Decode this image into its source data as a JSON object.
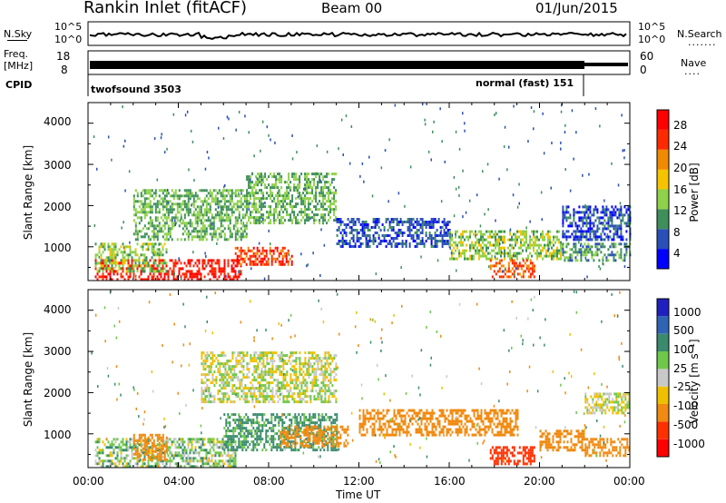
{
  "header": {
    "station": "Rankin Inlet (fitACF)",
    "beam": "Beam 00",
    "date": "01/Jun/2015"
  },
  "strips": {
    "nsky_label": "N.Sky",
    "nsky_ticks": [
      "10^5",
      "10^0"
    ],
    "nsearch_label": "N.Search",
    "nsearch_ticks": [
      "10^5",
      "10^0"
    ],
    "freq_label": "Freq.",
    "freq_unit": "[MHz]",
    "freq_ticks": [
      "18",
      "8"
    ],
    "nave_label": "Nave",
    "nave_ticks": [
      "60",
      "0"
    ],
    "cpid_label": "CPID",
    "cpid_modes": [
      {
        "name": "twofsound 3503",
        "start_hour": 0.5,
        "end_hour": 22.0
      },
      {
        "name": "normal (fast) 151",
        "start_hour": 22.0,
        "end_hour": 24.0
      }
    ]
  },
  "colors": {
    "power_scale": [
      "#0000ff",
      "#2a4fb8",
      "#3e8f5c",
      "#8fd14a",
      "#f5c400",
      "#f08a00",
      "#ff2a00",
      "#ff0000"
    ],
    "velocity_scale": [
      "#2020c0",
      "#2f64b4",
      "#3a8a6e",
      "#6fc84a",
      "#c8c8c8",
      "#f0c000",
      "#f08a10",
      "#ff3000",
      "#ff0000"
    ]
  },
  "power_panel": {
    "ylabel": "Slant Range [km]",
    "yticks": [
      "4000",
      "3000",
      "2000",
      "1000"
    ],
    "colorbar_label": "Power [dB]",
    "colorbar_ticks": [
      "28",
      "24",
      "20",
      "16",
      "12",
      "8",
      "4"
    ]
  },
  "velocity_panel": {
    "ylabel": "Slant Range [km]",
    "yticks": [
      "4000",
      "3000",
      "2000",
      "1000"
    ],
    "colorbar_label": "Velocity [m s⁻¹]",
    "colorbar_ticks": [
      "1000",
      "500",
      "100",
      "25",
      "-25",
      "-100",
      "-500",
      "-1000"
    ]
  },
  "xaxis": {
    "label": "Time UT",
    "ticks": [
      "00:00",
      "04:00",
      "08:00",
      "12:00",
      "16:00",
      "20:00",
      "00:00"
    ]
  },
  "chart_data": [
    {
      "type": "heatmap",
      "title": "Rankin Inlet (fitACF) Beam 00 01/Jun/2015",
      "xlabel": "Time UT",
      "ylabel": "Slant Range [km]",
      "x_range_hours": [
        0,
        24
      ],
      "ylim": [
        180,
        4500
      ],
      "colorbar": "Power [dB]",
      "colorbar_range": [
        0,
        32
      ],
      "grid": false,
      "regions": [
        {
          "t": [
            0.3,
            6.8
          ],
          "r": [
            180,
            700
          ],
          "value": 28
        },
        {
          "t": [
            0.3,
            3.5
          ],
          "r": [
            400,
            1100
          ],
          "value": 14
        },
        {
          "t": [
            2.0,
            7.0
          ],
          "r": [
            1200,
            2400
          ],
          "value": 12
        },
        {
          "t": [
            6.5,
            9.0
          ],
          "r": [
            600,
            1000
          ],
          "value": 26
        },
        {
          "t": [
            7.0,
            11.0
          ],
          "r": [
            1600,
            2800
          ],
          "value": 12
        },
        {
          "t": [
            11.0,
            16.0
          ],
          "r": [
            1000,
            1700
          ],
          "value": 6
        },
        {
          "t": [
            16.0,
            21.0
          ],
          "r": [
            700,
            1400
          ],
          "value": 14
        },
        {
          "t": [
            17.8,
            19.8
          ],
          "r": [
            300,
            700
          ],
          "value": 24
        },
        {
          "t": [
            21.0,
            24.0
          ],
          "r": [
            1200,
            2000
          ],
          "value": 6
        },
        {
          "t": [
            21.0,
            24.0
          ],
          "r": [
            700,
            1100
          ],
          "value": 10
        }
      ]
    },
    {
      "type": "heatmap",
      "title": "Rankin Inlet (fitACF) Beam 00 01/Jun/2015",
      "xlabel": "Time UT",
      "ylabel": "Slant Range [km]",
      "x_range_hours": [
        0,
        24
      ],
      "ylim": [
        180,
        4500
      ],
      "colorbar": "Velocity [m s⁻¹]",
      "colorbar_values": [
        1000,
        500,
        100,
        25,
        -25,
        -100,
        -500,
        -1000
      ],
      "grid": false,
      "regions": [
        {
          "t": [
            0.3,
            6.5
          ],
          "r": [
            180,
            900
          ],
          "value": 50
        },
        {
          "t": [
            2.0,
            3.5
          ],
          "r": [
            400,
            1000
          ],
          "value": -300
        },
        {
          "t": [
            5.0,
            11.0
          ],
          "r": [
            1800,
            3000
          ],
          "value": 0
        },
        {
          "t": [
            6.0,
            11.0
          ],
          "r": [
            600,
            1500
          ],
          "value": 150
        },
        {
          "t": [
            8.5,
            11.5
          ],
          "r": [
            700,
            1200
          ],
          "value": -300
        },
        {
          "t": [
            12.0,
            19.0
          ],
          "r": [
            1000,
            1600
          ],
          "value": -200
        },
        {
          "t": [
            17.8,
            19.8
          ],
          "r": [
            300,
            700
          ],
          "value": -600
        },
        {
          "t": [
            20.0,
            22.0
          ],
          "r": [
            600,
            1100
          ],
          "value": -300
        },
        {
          "t": [
            22.0,
            24.0
          ],
          "r": [
            1500,
            2000
          ],
          "value": 0
        },
        {
          "t": [
            22.0,
            24.0
          ],
          "r": [
            500,
            900
          ],
          "value": -200
        }
      ]
    }
  ]
}
